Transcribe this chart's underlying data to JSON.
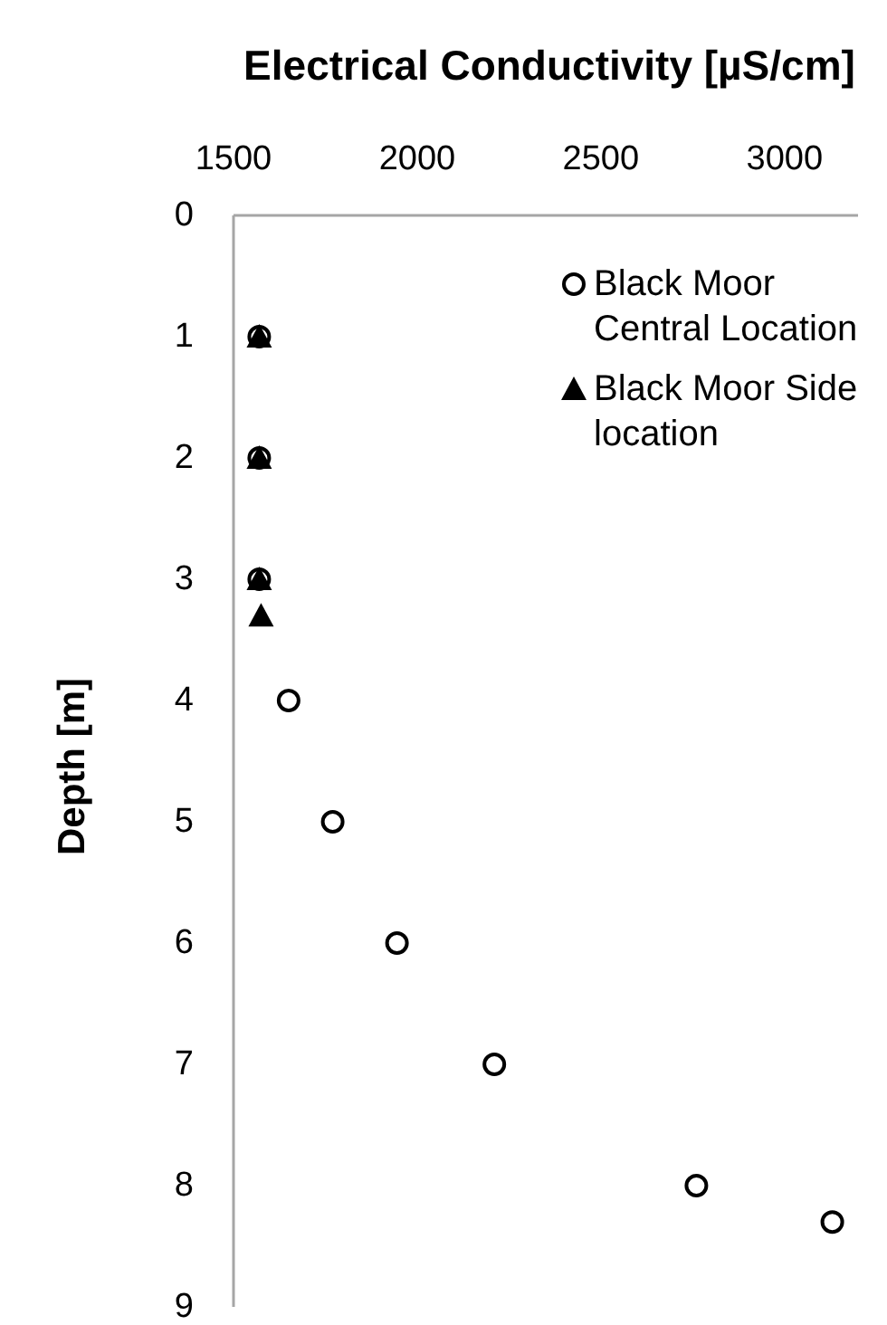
{
  "chart_data": {
    "type": "scatter",
    "xlabel": "Electrical Conductivity [µS/cm]",
    "ylabel": "Depth [m]",
    "xlim": [
      1500,
      3200
    ],
    "xticks": [
      1500,
      2000,
      2500,
      3000
    ],
    "ylim": [
      9,
      0
    ],
    "yticks": [
      0,
      1,
      2,
      3,
      4,
      5,
      6,
      7,
      8,
      9
    ],
    "legend": "top right",
    "series": [
      {
        "name": "Black Moor Central Location",
        "color": "#000000",
        "marker": "circle",
        "x": [
          1570,
          1570,
          1570,
          1650,
          1770,
          1945,
          2210,
          2760,
          3130
        ],
        "values": [
          1,
          2,
          3,
          4,
          5,
          6,
          7,
          8,
          8.3
        ]
      },
      {
        "name": "Black Moor Side location",
        "color": "#000000",
        "marker": "triangle",
        "x": [
          1570,
          1570,
          1570,
          1575
        ],
        "values": [
          1,
          2,
          3,
          3.3
        ]
      }
    ]
  }
}
